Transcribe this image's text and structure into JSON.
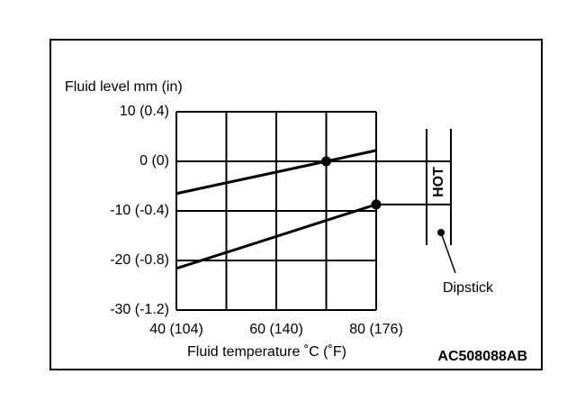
{
  "chart_data": {
    "type": "line",
    "ylabel": "Fluid level mm (in)",
    "xlabel": "Fluid temperature ˚C (˚F)",
    "code": "AC508088AB",
    "gauge_label": "HOT",
    "gauge_name": "Dipstick",
    "xlim": [
      40,
      80
    ],
    "xticks": [
      {
        "value": 40,
        "label": "40 (104)"
      },
      {
        "value": 60,
        "label": "60 (140)"
      },
      {
        "value": 80,
        "label": "80 (176)"
      }
    ],
    "xgrid_minor": [
      50,
      70
    ],
    "ylim": [
      -30,
      10
    ],
    "yticks": [
      {
        "value": 10,
        "label": "10 (0.4)"
      },
      {
        "value": 0,
        "label": "0 (0)"
      },
      {
        "value": -10,
        "label": "-10 (-0.4)"
      },
      {
        "value": -20,
        "label": "-20 (-0.8)"
      },
      {
        "value": -30,
        "label": "-30 (-1.2)"
      }
    ],
    "grid": true,
    "series": [
      {
        "color": "#000000",
        "x": [
          40,
          70,
          80
        ],
        "values": [
          -6.5,
          0,
          2.2
        ],
        "markers": [
          1
        ]
      },
      {
        "color": "#000000",
        "x": [
          40,
          80
        ],
        "values": [
          -21.6,
          -8.7
        ],
        "markers": [
          1
        ]
      }
    ]
  }
}
